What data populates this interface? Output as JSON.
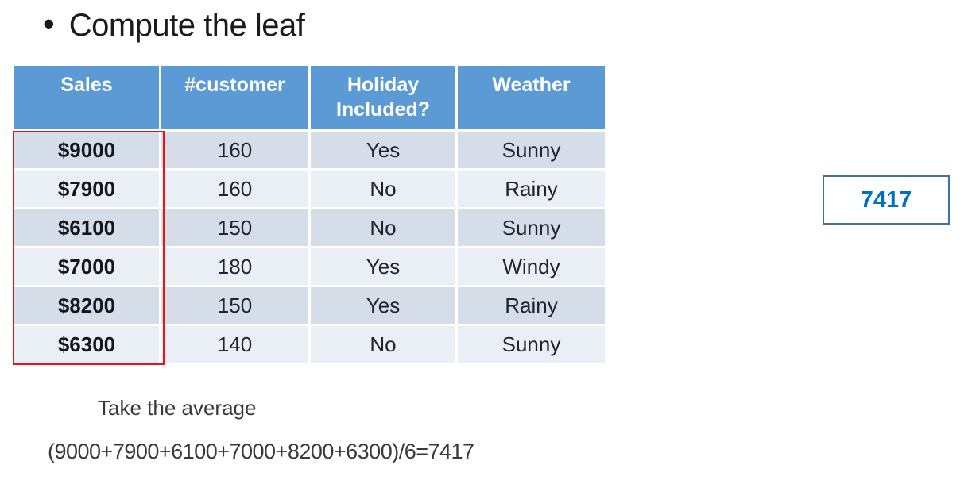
{
  "slide": {
    "bullet": "•",
    "title": "Compute the leaf"
  },
  "table": {
    "headers": [
      "Sales",
      "#customer",
      "Holiday Included?",
      "Weather"
    ],
    "rows": [
      [
        "$9000",
        "160",
        "Yes",
        "Sunny"
      ],
      [
        "$7900",
        "160",
        "No",
        "Rainy"
      ],
      [
        "$6100",
        "150",
        "No",
        "Sunny"
      ],
      [
        "$7000",
        "180",
        "Yes",
        "Windy"
      ],
      [
        "$8200",
        "150",
        "Yes",
        "Rainy"
      ],
      [
        "$6300",
        "140",
        "No",
        "Sunny"
      ]
    ]
  },
  "callout": {
    "value": "7417"
  },
  "notes": {
    "line1": "Take the average",
    "line2": "(9000+7900+6100+7000+8200+6300)/6=7417"
  },
  "colors": {
    "header_bg": "#5b9ad4",
    "row_dark": "#d5dde9",
    "row_light": "#eaeef5",
    "highlight_border": "#ee1111",
    "callout_border": "#41719c",
    "callout_text": "#0070c0",
    "title_color": "#1b1b1b",
    "body_text": "#212130",
    "note_text": "#38383f"
  }
}
